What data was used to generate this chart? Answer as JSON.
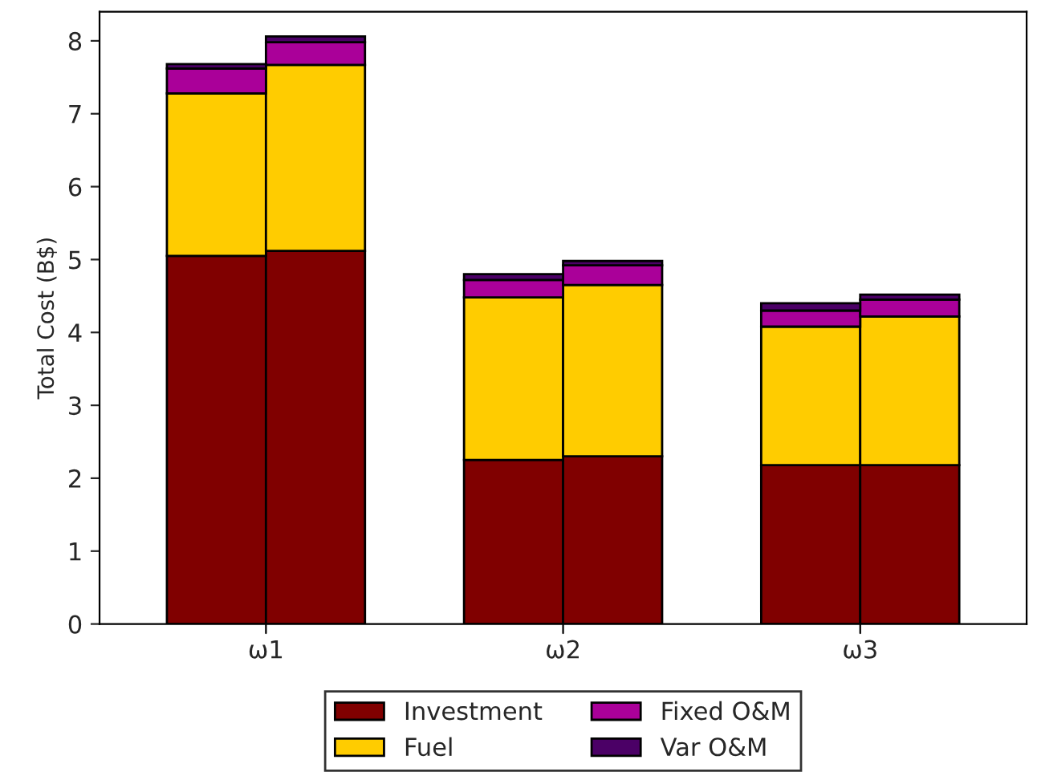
{
  "chart_data": {
    "type": "bar",
    "stacked": true,
    "ylabel": "Total Cost (B$)",
    "categories": [
      null,
      null,
      null,
      null,
      null,
      null
    ],
    "annotations": [
      "ω1",
      "ω2",
      "ω3"
    ],
    "ylim": [
      0,
      8.4
    ],
    "yticks": [
      0,
      1,
      2,
      3,
      4,
      5,
      6,
      7,
      8
    ],
    "grid": false,
    "legend": "bottom",
    "series": [
      {
        "name": "Investment",
        "color": "#800000",
        "values": [
          5.05,
          5.12,
          2.25,
          2.3,
          2.18,
          2.18
        ]
      },
      {
        "name": "Fuel",
        "color": "#ffcc00",
        "values": [
          2.23,
          2.55,
          2.23,
          2.35,
          1.9,
          2.04
        ]
      },
      {
        "name": "Fixed O&M",
        "color": "#aa0099",
        "values": [
          0.34,
          0.31,
          0.24,
          0.27,
          0.22,
          0.23
        ]
      },
      {
        "name": "Var O&M",
        "color": "#4b0066",
        "values": [
          0.06,
          0.08,
          0.08,
          0.06,
          0.1,
          0.07
        ]
      }
    ]
  }
}
